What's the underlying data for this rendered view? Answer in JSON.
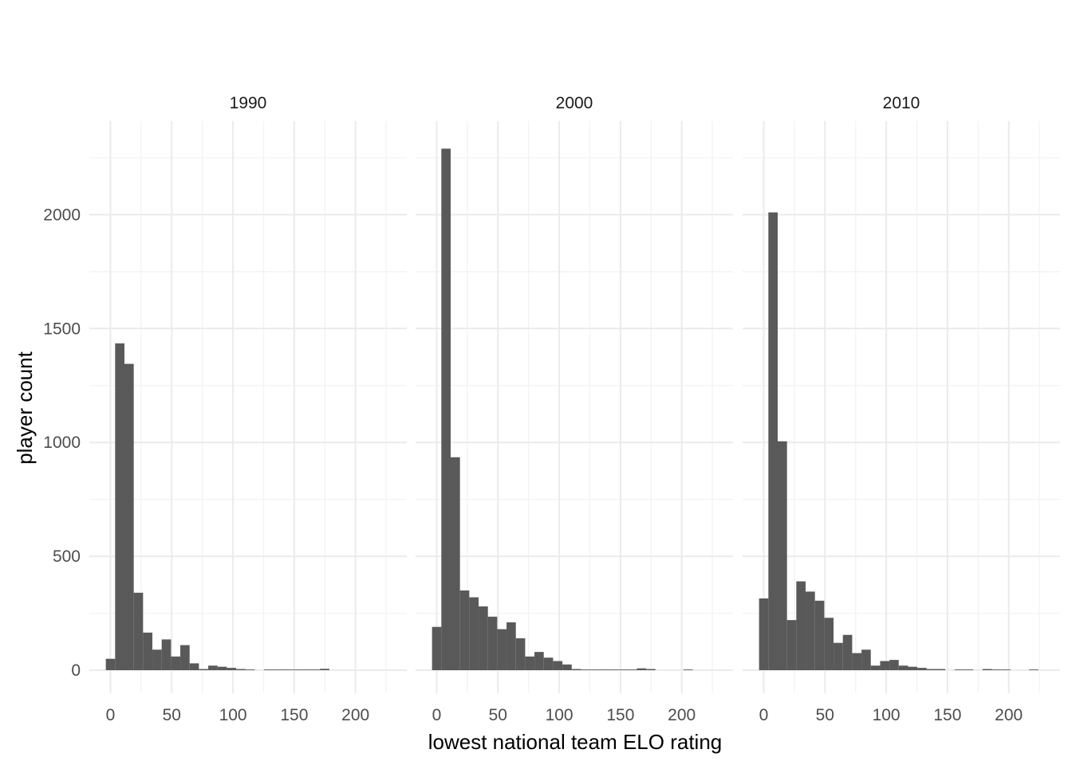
{
  "chart_data": {
    "type": "bar",
    "subtype": "histogram",
    "xlabel": "lowest national team ELO rating",
    "ylabel": "player count",
    "bin_width": 7.6,
    "xlim": [
      -15,
      230
    ],
    "ylim": [
      -100,
      2420
    ],
    "x_ticks": [
      0,
      50,
      100,
      150,
      200
    ],
    "y_ticks": [
      0,
      500,
      1000,
      1500,
      2000
    ],
    "x_tick_labels": [
      "0",
      "50",
      "100",
      "150",
      "200"
    ],
    "y_tick_labels": [
      "0",
      "500",
      "1000",
      "1500",
      "2000"
    ],
    "grid": true,
    "bar_color": "#595959",
    "facets": [
      {
        "label": "1990",
        "bins": [
          {
            "x": 0,
            "count": 50
          },
          {
            "x": 7.6,
            "count": 1435
          },
          {
            "x": 15.2,
            "count": 1345
          },
          {
            "x": 22.8,
            "count": 340
          },
          {
            "x": 30.4,
            "count": 165
          },
          {
            "x": 38,
            "count": 90
          },
          {
            "x": 45.6,
            "count": 135
          },
          {
            "x": 53.2,
            "count": 60
          },
          {
            "x": 60.8,
            "count": 110
          },
          {
            "x": 68.4,
            "count": 30
          },
          {
            "x": 76,
            "count": 5
          },
          {
            "x": 83.6,
            "count": 20
          },
          {
            "x": 91.2,
            "count": 15
          },
          {
            "x": 98.8,
            "count": 10
          },
          {
            "x": 106.4,
            "count": 5
          },
          {
            "x": 114,
            "count": 3
          },
          {
            "x": 129.2,
            "count": 3
          },
          {
            "x": 136.8,
            "count": 3
          },
          {
            "x": 144.4,
            "count": 3
          },
          {
            "x": 152,
            "count": 3
          },
          {
            "x": 159.6,
            "count": 3
          },
          {
            "x": 167.2,
            "count": 3
          },
          {
            "x": 174.8,
            "count": 6
          }
        ]
      },
      {
        "label": "2000",
        "bins": [
          {
            "x": 0,
            "count": 190
          },
          {
            "x": 7.6,
            "count": 2290
          },
          {
            "x": 15.2,
            "count": 935
          },
          {
            "x": 22.8,
            "count": 350
          },
          {
            "x": 30.4,
            "count": 320
          },
          {
            "x": 38,
            "count": 280
          },
          {
            "x": 45.6,
            "count": 235
          },
          {
            "x": 53.2,
            "count": 180
          },
          {
            "x": 60.8,
            "count": 210
          },
          {
            "x": 68.4,
            "count": 140
          },
          {
            "x": 76,
            "count": 60
          },
          {
            "x": 83.6,
            "count": 80
          },
          {
            "x": 91.2,
            "count": 55
          },
          {
            "x": 98.8,
            "count": 40
          },
          {
            "x": 106.4,
            "count": 25
          },
          {
            "x": 114,
            "count": 5
          },
          {
            "x": 121.6,
            "count": 3
          },
          {
            "x": 129.2,
            "count": 3
          },
          {
            "x": 136.8,
            "count": 3
          },
          {
            "x": 144.4,
            "count": 3
          },
          {
            "x": 152,
            "count": 3
          },
          {
            "x": 159.6,
            "count": 3
          },
          {
            "x": 167.2,
            "count": 8
          },
          {
            "x": 174.8,
            "count": 5
          },
          {
            "x": 205.2,
            "count": 3
          }
        ]
      },
      {
        "label": "2010",
        "bins": [
          {
            "x": 0,
            "count": 315
          },
          {
            "x": 7.6,
            "count": 2010
          },
          {
            "x": 15.2,
            "count": 1005
          },
          {
            "x": 22.8,
            "count": 220
          },
          {
            "x": 30.4,
            "count": 390
          },
          {
            "x": 38,
            "count": 345
          },
          {
            "x": 45.6,
            "count": 305
          },
          {
            "x": 53.2,
            "count": 230
          },
          {
            "x": 60.8,
            "count": 120
          },
          {
            "x": 68.4,
            "count": 155
          },
          {
            "x": 76,
            "count": 75
          },
          {
            "x": 83.6,
            "count": 90
          },
          {
            "x": 91.2,
            "count": 20
          },
          {
            "x": 98.8,
            "count": 40
          },
          {
            "x": 106.4,
            "count": 45
          },
          {
            "x": 114,
            "count": 20
          },
          {
            "x": 121.6,
            "count": 15
          },
          {
            "x": 129.2,
            "count": 10
          },
          {
            "x": 136.8,
            "count": 5
          },
          {
            "x": 144.4,
            "count": 5
          },
          {
            "x": 159.6,
            "count": 3
          },
          {
            "x": 167.2,
            "count": 3
          },
          {
            "x": 182.4,
            "count": 5
          },
          {
            "x": 190,
            "count": 3
          },
          {
            "x": 197.6,
            "count": 3
          },
          {
            "x": 220.4,
            "count": 3
          }
        ]
      }
    ]
  }
}
